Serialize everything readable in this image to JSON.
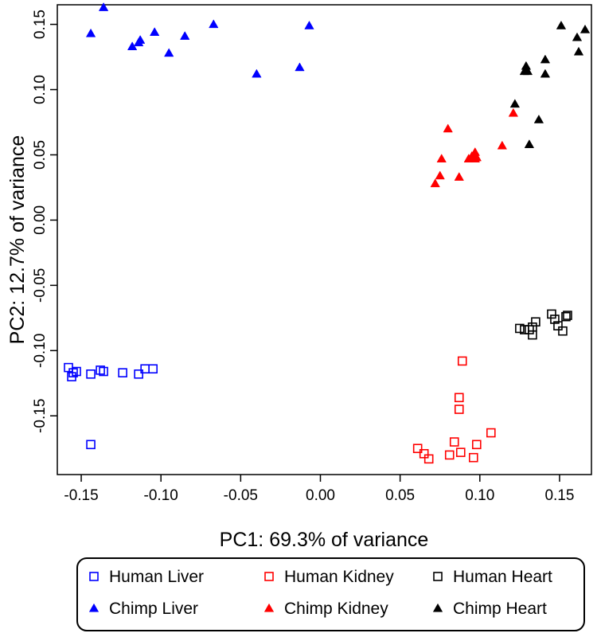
{
  "chart_data": {
    "type": "scatter",
    "title": "",
    "xlabel": "PC1: 69.3% of variance",
    "ylabel": "PC2: 12.7% of variance",
    "xlim": [
      -0.165,
      0.17
    ],
    "ylim": [
      -0.195,
      0.165
    ],
    "x_ticks": [
      -0.15,
      -0.1,
      -0.05,
      0.0,
      0.05,
      0.1,
      0.15
    ],
    "x_tick_labels": [
      "-0.15",
      "-0.10",
      "-0.05",
      "0.00",
      "0.05",
      "0.10",
      "0.15"
    ],
    "y_ticks": [
      -0.15,
      -0.1,
      -0.05,
      0.0,
      0.05,
      0.1,
      0.15
    ],
    "y_tick_labels": [
      "-0.15",
      "-0.10",
      "-0.05",
      "0.00",
      "0.05",
      "0.10",
      "0.15"
    ],
    "grid": false,
    "legend_position": "bottom",
    "series": [
      {
        "name": "Human Liver",
        "marker": "square-open",
        "color": "#0000ff",
        "points": [
          [
            -0.158,
            -0.113
          ],
          [
            -0.156,
            -0.12
          ],
          [
            -0.155,
            -0.117
          ],
          [
            -0.153,
            -0.116
          ],
          [
            -0.144,
            -0.118
          ],
          [
            -0.138,
            -0.115
          ],
          [
            -0.136,
            -0.116
          ],
          [
            -0.124,
            -0.117
          ],
          [
            -0.114,
            -0.118
          ],
          [
            -0.11,
            -0.114
          ],
          [
            -0.105,
            -0.114
          ],
          [
            -0.144,
            -0.172
          ]
        ]
      },
      {
        "name": "Chimp Liver",
        "marker": "triangle-filled",
        "color": "#0000ff",
        "points": [
          [
            -0.144,
            0.143
          ],
          [
            -0.136,
            0.163
          ],
          [
            -0.118,
            0.133
          ],
          [
            -0.114,
            0.136
          ],
          [
            -0.113,
            0.138
          ],
          [
            -0.104,
            0.144
          ],
          [
            -0.095,
            0.128
          ],
          [
            -0.085,
            0.141
          ],
          [
            -0.067,
            0.15
          ],
          [
            -0.04,
            0.112
          ],
          [
            -0.013,
            0.117
          ],
          [
            -0.007,
            0.149
          ]
        ]
      },
      {
        "name": "Human Kidney",
        "marker": "square-open",
        "color": "#ff0000",
        "points": [
          [
            0.089,
            -0.108
          ],
          [
            0.087,
            -0.136
          ],
          [
            0.087,
            -0.145
          ],
          [
            0.061,
            -0.175
          ],
          [
            0.065,
            -0.179
          ],
          [
            0.068,
            -0.183
          ],
          [
            0.084,
            -0.17
          ],
          [
            0.081,
            -0.18
          ],
          [
            0.088,
            -0.178
          ],
          [
            0.098,
            -0.172
          ],
          [
            0.107,
            -0.163
          ],
          [
            0.096,
            -0.182
          ]
        ]
      },
      {
        "name": "Chimp Kidney",
        "marker": "triangle-filled",
        "color": "#ff0000",
        "points": [
          [
            0.08,
            0.07
          ],
          [
            0.076,
            0.047
          ],
          [
            0.072,
            0.028
          ],
          [
            0.075,
            0.034
          ],
          [
            0.087,
            0.033
          ],
          [
            0.093,
            0.047
          ],
          [
            0.095,
            0.049
          ],
          [
            0.097,
            0.052
          ],
          [
            0.098,
            0.048
          ],
          [
            0.097,
            0.047
          ],
          [
            0.114,
            0.057
          ],
          [
            0.121,
            0.082
          ]
        ]
      },
      {
        "name": "Human Heart",
        "marker": "square-open",
        "color": "#000000",
        "points": [
          [
            0.125,
            -0.083
          ],
          [
            0.128,
            -0.084
          ],
          [
            0.131,
            -0.084
          ],
          [
            0.133,
            -0.082
          ],
          [
            0.133,
            -0.088
          ],
          [
            0.135,
            -0.078
          ],
          [
            0.145,
            -0.072
          ],
          [
            0.147,
            -0.076
          ],
          [
            0.149,
            -0.081
          ],
          [
            0.152,
            -0.085
          ],
          [
            0.154,
            -0.074
          ],
          [
            0.155,
            -0.073
          ]
        ]
      },
      {
        "name": "Chimp Heart",
        "marker": "triangle-filled",
        "color": "#000000",
        "points": [
          [
            0.122,
            0.089
          ],
          [
            0.128,
            0.114
          ],
          [
            0.129,
            0.118
          ],
          [
            0.13,
            0.114
          ],
          [
            0.131,
            0.058
          ],
          [
            0.137,
            0.077
          ],
          [
            0.141,
            0.112
          ],
          [
            0.141,
            0.123
          ],
          [
            0.151,
            0.149
          ],
          [
            0.161,
            0.14
          ],
          [
            0.162,
            0.129
          ],
          [
            0.166,
            0.146
          ]
        ]
      }
    ]
  },
  "legend": {
    "items": [
      {
        "label": "Human Liver",
        "marker": "square-open",
        "color": "#0000ff"
      },
      {
        "label": "Human Kidney",
        "marker": "square-open",
        "color": "#ff0000"
      },
      {
        "label": "Human Heart",
        "marker": "square-open",
        "color": "#000000"
      },
      {
        "label": "Chimp Liver",
        "marker": "triangle-filled",
        "color": "#0000ff"
      },
      {
        "label": "Chimp Kidney",
        "marker": "triangle-filled",
        "color": "#ff0000"
      },
      {
        "label": "Chimp Heart",
        "marker": "triangle-filled",
        "color": "#000000"
      }
    ]
  }
}
